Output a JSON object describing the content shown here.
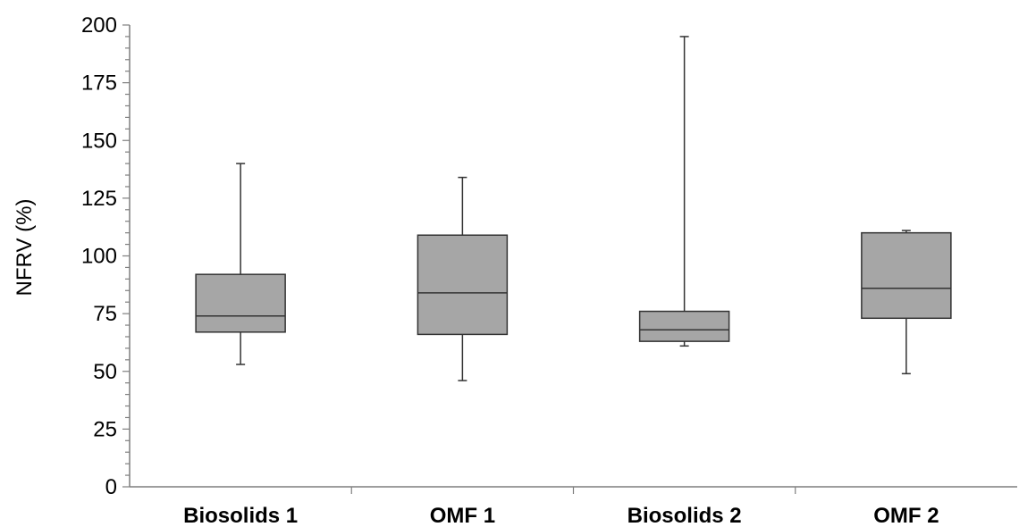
{
  "chart_data": {
    "type": "box",
    "title": "",
    "xlabel": "",
    "ylabel": "NFRV (%)",
    "ylim": [
      0,
      200
    ],
    "yticks": [
      0,
      25,
      50,
      75,
      100,
      125,
      150,
      175,
      200
    ],
    "grid": false,
    "legend": "none",
    "categories": [
      "Biosolids 1",
      "OMF 1",
      "Biosolids 2",
      "OMF 2"
    ],
    "boxes": [
      {
        "category": "Biosolids 1",
        "min": 53,
        "q1": 67,
        "median": 74,
        "q3": 92,
        "max": 140
      },
      {
        "category": "OMF 1",
        "min": 46,
        "q1": 66,
        "median": 84,
        "q3": 109,
        "max": 134
      },
      {
        "category": "Biosolids 2",
        "min": 61,
        "q1": 63,
        "median": 68,
        "q3": 76,
        "max": 195
      },
      {
        "category": "OMF 2",
        "min": 49,
        "q1": 73,
        "median": 86,
        "q3": 110,
        "max": 111
      }
    ],
    "colors": {
      "box_fill": "#a6a6a6",
      "stroke": "#333333",
      "axis": "#7f7f7f"
    }
  }
}
